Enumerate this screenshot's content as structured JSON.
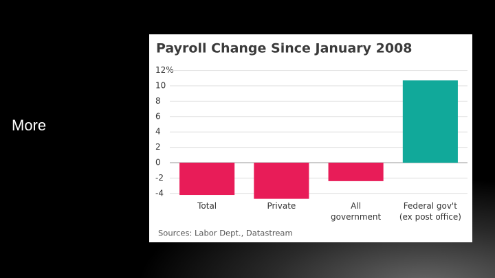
{
  "slide": {
    "text": "More"
  },
  "chart_data": {
    "type": "bar",
    "title": "Payroll Change Since January 2008",
    "categories": [
      "Total",
      "Private",
      "All\ngovernment",
      "Federal gov't\n(ex post office)"
    ],
    "values": [
      -4.2,
      -4.7,
      -2.4,
      10.7
    ],
    "colors": [
      "#e81c58",
      "#e81c58",
      "#e81c58",
      "#11a99a"
    ],
    "ylim": [
      -5,
      12
    ],
    "yticks": [
      {
        "value": 12,
        "label": "12%"
      },
      10,
      8,
      6,
      4,
      2,
      0,
      -2,
      -4
    ],
    "grid": true,
    "source": "Sources: Labor Dept., Datastream"
  }
}
